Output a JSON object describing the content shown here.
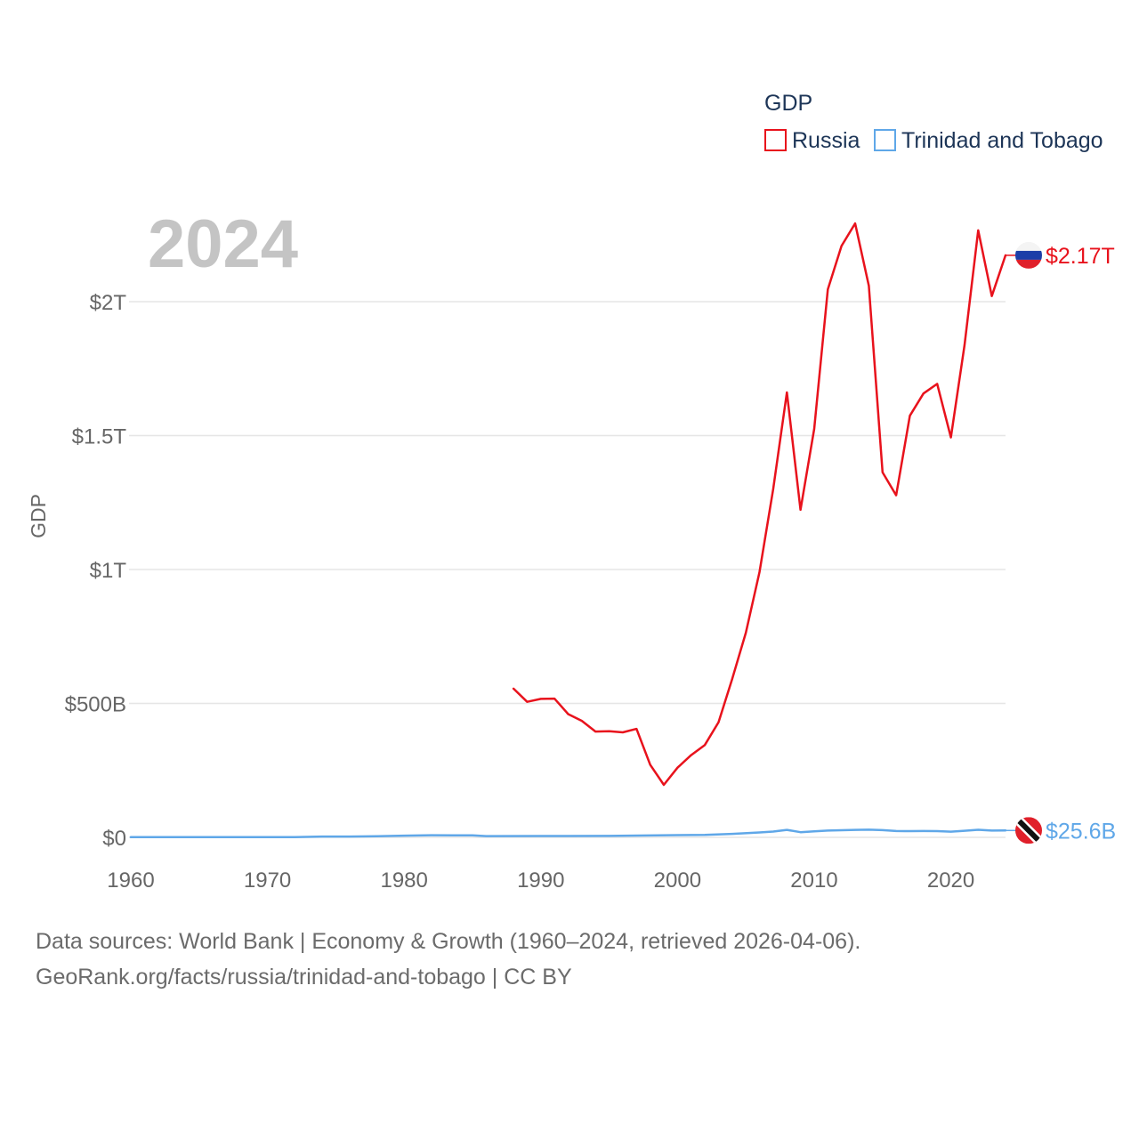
{
  "chart_data": {
    "type": "line",
    "title": "GDP",
    "legend_title": "GDP",
    "legend_position": "top-right",
    "year_overlay": "2024",
    "ylabel": "GDP",
    "xlabel": "",
    "xlim": [
      1960,
      2024
    ],
    "ylim": [
      0,
      2000
    ],
    "y_unit": "billions USD",
    "grid": true,
    "x_ticks": [
      {
        "value": 1960,
        "label": "1960"
      },
      {
        "value": 1970,
        "label": "1970"
      },
      {
        "value": 1980,
        "label": "1980"
      },
      {
        "value": 1990,
        "label": "1990"
      },
      {
        "value": 2000,
        "label": "2000"
      },
      {
        "value": 2010,
        "label": "2010"
      },
      {
        "value": 2020,
        "label": "2020"
      }
    ],
    "y_ticks": [
      {
        "value": 0,
        "label": "$0"
      },
      {
        "value": 500,
        "label": "$500B"
      },
      {
        "value": 1000,
        "label": "$1T"
      },
      {
        "value": 1500,
        "label": "$1.5T"
      },
      {
        "value": 2000,
        "label": "$2T"
      }
    ],
    "series": [
      {
        "name": "Russia",
        "color": "#e8121c",
        "end_label": "$2.17T",
        "flag": "russia",
        "points": [
          [
            1988,
            555
          ],
          [
            1989,
            506
          ],
          [
            1990,
            517
          ],
          [
            1991,
            518
          ],
          [
            1992,
            460
          ],
          [
            1993,
            435
          ],
          [
            1994,
            395
          ],
          [
            1995,
            396
          ],
          [
            1996,
            392
          ],
          [
            1997,
            405
          ],
          [
            1998,
            271
          ],
          [
            1999,
            196
          ],
          [
            2000,
            260
          ],
          [
            2001,
            307
          ],
          [
            2002,
            345
          ],
          [
            2003,
            430
          ],
          [
            2004,
            591
          ],
          [
            2005,
            764
          ],
          [
            2006,
            990
          ],
          [
            2007,
            1300
          ],
          [
            2008,
            1661
          ],
          [
            2009,
            1223
          ],
          [
            2010,
            1525
          ],
          [
            2011,
            2046
          ],
          [
            2012,
            2208
          ],
          [
            2013,
            2292
          ],
          [
            2014,
            2059
          ],
          [
            2015,
            1363
          ],
          [
            2016,
            1277
          ],
          [
            2017,
            1574
          ],
          [
            2018,
            1657
          ],
          [
            2019,
            1693
          ],
          [
            2020,
            1493
          ],
          [
            2021,
            1837
          ],
          [
            2022,
            2266
          ],
          [
            2023,
            2021
          ],
          [
            2024,
            2173
          ]
        ]
      },
      {
        "name": "Trinidad and Tobago",
        "color": "#5fa7e8",
        "end_label": "$25.6B",
        "flag": "trinidad-and-tobago",
        "points": [
          [
            1960,
            0.5
          ],
          [
            1965,
            0.8
          ],
          [
            1970,
            0.8
          ],
          [
            1972,
            1.1
          ],
          [
            1974,
            3
          ],
          [
            1976,
            3
          ],
          [
            1978,
            4
          ],
          [
            1980,
            6.2
          ],
          [
            1982,
            8
          ],
          [
            1985,
            7.4
          ],
          [
            1986,
            4.8
          ],
          [
            1990,
            5
          ],
          [
            1995,
            5.3
          ],
          [
            2000,
            8.2
          ],
          [
            2002,
            9
          ],
          [
            2004,
            13
          ],
          [
            2006,
            18.4
          ],
          [
            2007,
            21.6
          ],
          [
            2008,
            27.9
          ],
          [
            2009,
            19.2
          ],
          [
            2010,
            22.2
          ],
          [
            2011,
            25.4
          ],
          [
            2012,
            26.6
          ],
          [
            2013,
            27.8
          ],
          [
            2014,
            28.7
          ],
          [
            2015,
            26.8
          ],
          [
            2016,
            23.6
          ],
          [
            2017,
            23.2
          ],
          [
            2018,
            23.6
          ],
          [
            2019,
            23.1
          ],
          [
            2020,
            21.4
          ],
          [
            2021,
            24.7
          ],
          [
            2022,
            28.3
          ],
          [
            2023,
            25.2
          ],
          [
            2024,
            25.6
          ]
        ]
      }
    ],
    "source_lines": [
      "Data sources: World Bank | Economy & Growth (1960–2024, retrieved 2026-04-06).",
      "GeoRank.org/facts/russia/trinidad-and-tobago | CC BY"
    ]
  },
  "colors": {
    "grid": "#e6e6e6",
    "tick_text": "#666666",
    "legend_text": "#1d3557",
    "year_overlay": "#c4c4c4",
    "source_text": "#6b6b6b"
  }
}
